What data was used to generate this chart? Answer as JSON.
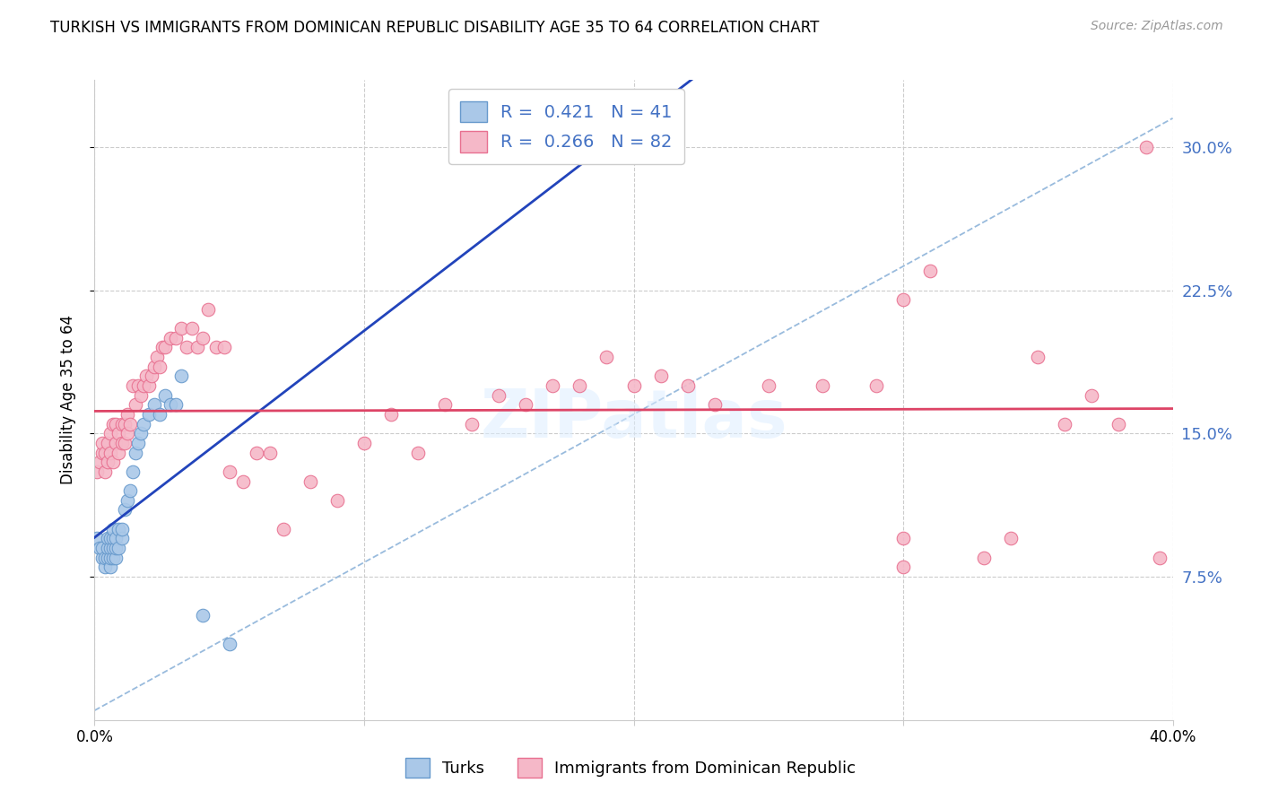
{
  "title": "TURKISH VS IMMIGRANTS FROM DOMINICAN REPUBLIC DISABILITY AGE 35 TO 64 CORRELATION CHART",
  "source": "Source: ZipAtlas.com",
  "ylabel": "Disability Age 35 to 64",
  "ytick_values": [
    0.075,
    0.15,
    0.225,
    0.3
  ],
  "ytick_labels": [
    "7.5%",
    "15.0%",
    "22.5%",
    "30.0%"
  ],
  "xtick_values": [
    0.0,
    0.1,
    0.2,
    0.3,
    0.4
  ],
  "xlim": [
    0.0,
    0.4
  ],
  "ylim": [
    0.0,
    0.335
  ],
  "turks_R": "0.421",
  "turks_N": "41",
  "dr_R": "0.266",
  "dr_N": "82",
  "legend_label_turks": "Turks",
  "legend_label_dr": "Immigrants from Dominican Republic",
  "turks_fill": "#aac8e8",
  "turks_edge": "#6699cc",
  "dr_fill": "#f5b8c8",
  "dr_edge": "#e87090",
  "trend_turks": "#2244bb",
  "trend_dr": "#dd4466",
  "dashed_color": "#99bbdd",
  "grid_color": "#cccccc",
  "turks_x": [
    0.001,
    0.002,
    0.003,
    0.003,
    0.004,
    0.004,
    0.005,
    0.005,
    0.005,
    0.006,
    0.006,
    0.006,
    0.006,
    0.007,
    0.007,
    0.007,
    0.007,
    0.008,
    0.008,
    0.008,
    0.009,
    0.009,
    0.01,
    0.01,
    0.011,
    0.012,
    0.013,
    0.014,
    0.015,
    0.016,
    0.017,
    0.018,
    0.02,
    0.022,
    0.024,
    0.026,
    0.028,
    0.03,
    0.032,
    0.04,
    0.05
  ],
  "turks_y": [
    0.095,
    0.09,
    0.085,
    0.09,
    0.08,
    0.085,
    0.085,
    0.09,
    0.095,
    0.08,
    0.085,
    0.09,
    0.095,
    0.085,
    0.09,
    0.095,
    0.1,
    0.085,
    0.09,
    0.095,
    0.09,
    0.1,
    0.095,
    0.1,
    0.11,
    0.115,
    0.12,
    0.13,
    0.14,
    0.145,
    0.15,
    0.155,
    0.16,
    0.165,
    0.16,
    0.17,
    0.165,
    0.165,
    0.18,
    0.055,
    0.04
  ],
  "dr_x": [
    0.001,
    0.002,
    0.003,
    0.003,
    0.004,
    0.004,
    0.005,
    0.005,
    0.006,
    0.006,
    0.007,
    0.007,
    0.008,
    0.008,
    0.009,
    0.009,
    0.01,
    0.01,
    0.011,
    0.011,
    0.012,
    0.012,
    0.013,
    0.014,
    0.015,
    0.016,
    0.017,
    0.018,
    0.019,
    0.02,
    0.021,
    0.022,
    0.023,
    0.024,
    0.025,
    0.026,
    0.028,
    0.03,
    0.032,
    0.034,
    0.036,
    0.038,
    0.04,
    0.042,
    0.045,
    0.048,
    0.05,
    0.055,
    0.06,
    0.065,
    0.07,
    0.08,
    0.09,
    0.1,
    0.11,
    0.12,
    0.13,
    0.14,
    0.15,
    0.16,
    0.17,
    0.18,
    0.19,
    0.2,
    0.21,
    0.22,
    0.23,
    0.25,
    0.27,
    0.29,
    0.3,
    0.3,
    0.31,
    0.33,
    0.34,
    0.35,
    0.36,
    0.37,
    0.38,
    0.39,
    0.395,
    0.3
  ],
  "dr_y": [
    0.13,
    0.135,
    0.14,
    0.145,
    0.14,
    0.13,
    0.145,
    0.135,
    0.15,
    0.14,
    0.155,
    0.135,
    0.145,
    0.155,
    0.14,
    0.15,
    0.145,
    0.155,
    0.145,
    0.155,
    0.15,
    0.16,
    0.155,
    0.175,
    0.165,
    0.175,
    0.17,
    0.175,
    0.18,
    0.175,
    0.18,
    0.185,
    0.19,
    0.185,
    0.195,
    0.195,
    0.2,
    0.2,
    0.205,
    0.195,
    0.205,
    0.195,
    0.2,
    0.215,
    0.195,
    0.195,
    0.13,
    0.125,
    0.14,
    0.14,
    0.1,
    0.125,
    0.115,
    0.145,
    0.16,
    0.14,
    0.165,
    0.155,
    0.17,
    0.165,
    0.175,
    0.175,
    0.19,
    0.175,
    0.18,
    0.175,
    0.165,
    0.175,
    0.175,
    0.175,
    0.22,
    0.095,
    0.235,
    0.085,
    0.095,
    0.19,
    0.155,
    0.17,
    0.155,
    0.3,
    0.085,
    0.08
  ]
}
